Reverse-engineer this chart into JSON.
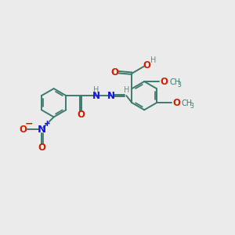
{
  "bg_color": "#ebebeb",
  "bond_color": "#3d7a6e",
  "bond_lw": 1.4,
  "o_color": "#cc2000",
  "n_color": "#1414dd",
  "h_color": "#6a8a8a",
  "c_color": "#3d7a6e",
  "fa": 8.5,
  "fs": 7.0,
  "ring_r": 0.58,
  "xlim": [
    0,
    9.5
  ],
  "ylim": [
    0,
    9.5
  ]
}
